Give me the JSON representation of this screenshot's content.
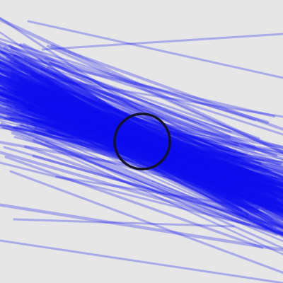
{
  "canvas": {
    "background": "#e6e6e6"
  },
  "strokes": {
    "color": "#1010f0",
    "opacity": 0.28,
    "count": 420,
    "seed": 7
  },
  "marker": {
    "shape": "ring",
    "stroke_color": "#141428"
  }
}
